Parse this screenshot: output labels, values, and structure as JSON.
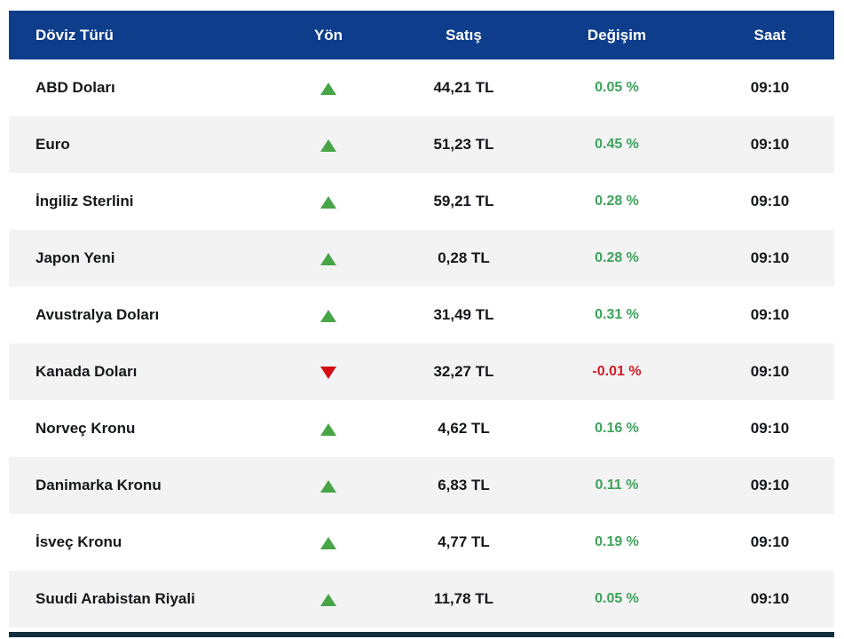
{
  "colors": {
    "header-bg": "#0e3d8c",
    "header-text": "#ffffff",
    "row-alt-bg": "#f3f3f3",
    "text-dark": "#15171c",
    "green": "#3da35c",
    "green-tri": "#47a447",
    "red": "#d01e26",
    "red-tri": "#d40d15",
    "bottom-bar": "#132e3e"
  },
  "table": {
    "headers": {
      "currency": "Döviz Türü",
      "direction": "Yön",
      "sale": "Satış",
      "change": "Değişim",
      "time": "Saat"
    },
    "rows": [
      {
        "name": "ABD Doları",
        "direction": "up",
        "sale": "44,21 TL",
        "change": "0.05 %",
        "time": "09:10"
      },
      {
        "name": "Euro",
        "direction": "up",
        "sale": "51,23 TL",
        "change": "0.45 %",
        "time": "09:10"
      },
      {
        "name": "İngiliz Sterlini",
        "direction": "up",
        "sale": "59,21 TL",
        "change": "0.28 %",
        "time": "09:10"
      },
      {
        "name": "Japon Yeni",
        "direction": "up",
        "sale": "0,28 TL",
        "change": "0.28 %",
        "time": "09:10"
      },
      {
        "name": "Avustralya Doları",
        "direction": "up",
        "sale": "31,49 TL",
        "change": "0.31 %",
        "time": "09:10"
      },
      {
        "name": "Kanada Doları",
        "direction": "down",
        "sale": "32,27 TL",
        "change": "-0.01 %",
        "time": "09:10"
      },
      {
        "name": "Norveç Kronu",
        "direction": "up",
        "sale": "4,62 TL",
        "change": "0.16 %",
        "time": "09:10"
      },
      {
        "name": "Danimarka Kronu",
        "direction": "up",
        "sale": "6,83 TL",
        "change": "0.11 %",
        "time": "09:10"
      },
      {
        "name": "İsveç Kronu",
        "direction": "up",
        "sale": "4,77 TL",
        "change": "0.19 %",
        "time": "09:10"
      },
      {
        "name": "Suudi Arabistan Riyali",
        "direction": "up",
        "sale": "11,78 TL",
        "change": "0.05 %",
        "time": "09:10"
      }
    ]
  }
}
